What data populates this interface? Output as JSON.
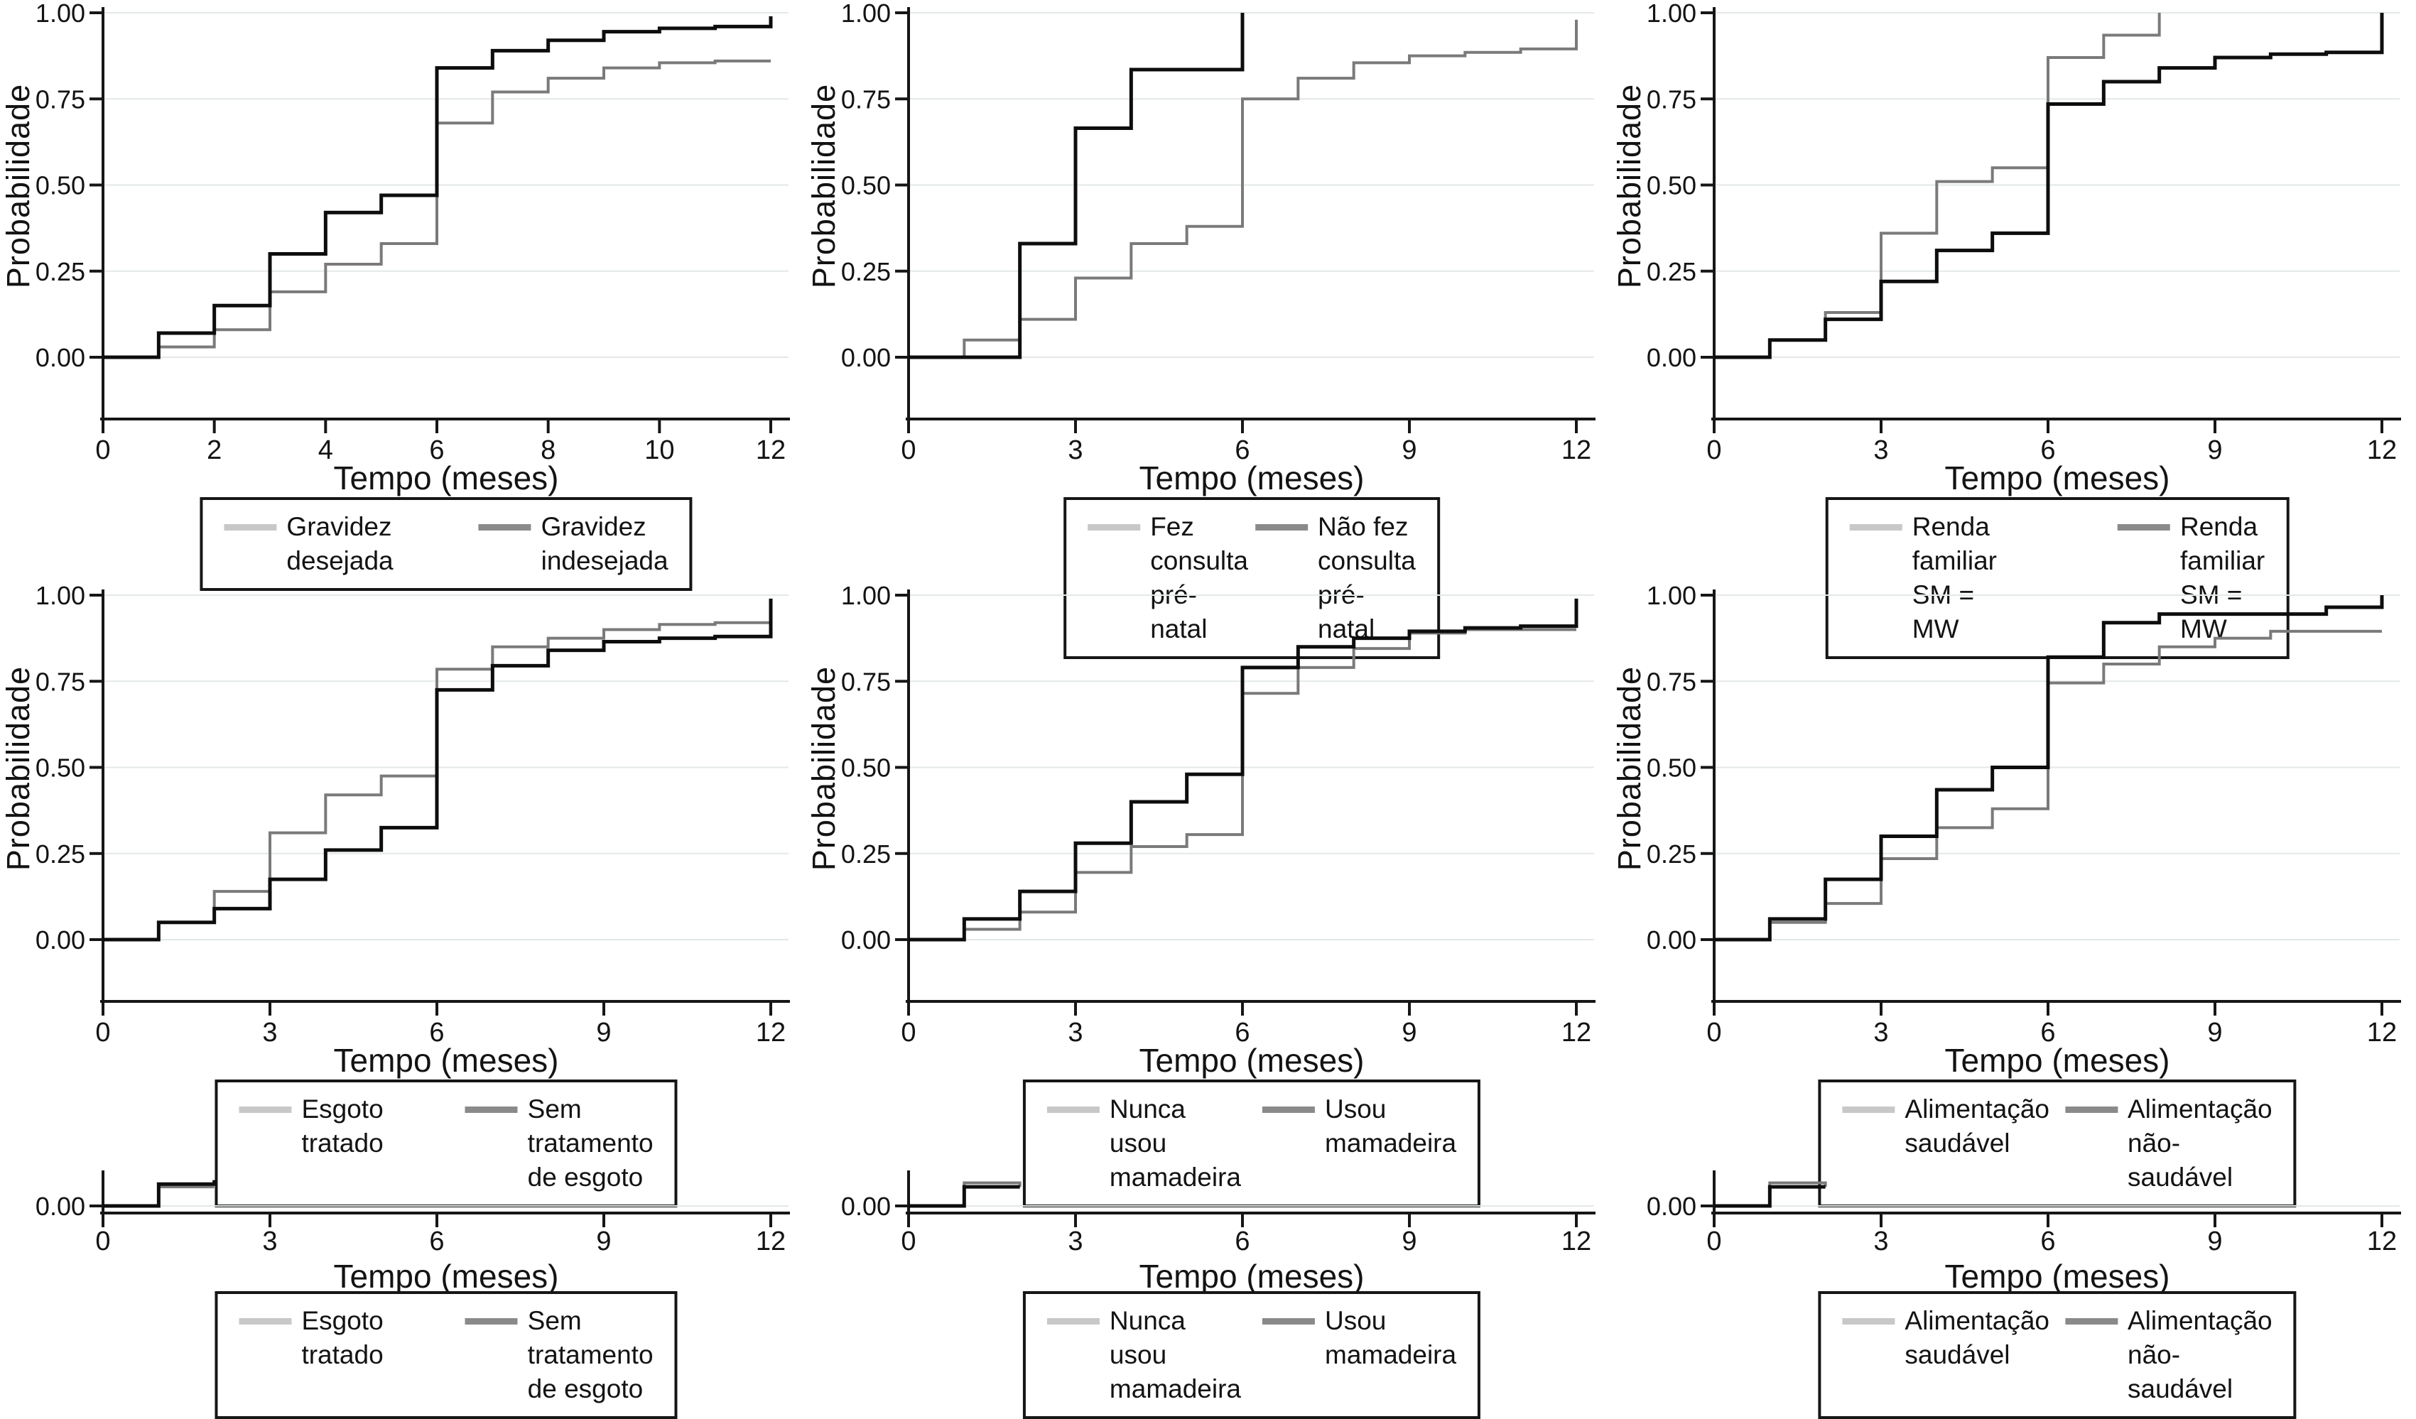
{
  "palette": {
    "curve_light": "#7a7a7a",
    "curve_dark": "#0d0d0d",
    "swatch_light": "#c8c8c8",
    "swatch_dark": "#8a8a8a",
    "gridline": "#e3e9e5",
    "axis": "#161616",
    "text": "#131313"
  },
  "chart_data": [
    {
      "type": "line",
      "subtype": "step-kaplan-meier",
      "panel": "full",
      "title": "",
      "xlabel": "Tempo (meses)",
      "ylabel": "Probabilidade",
      "xmax": 12,
      "ylim": [
        0,
        1
      ],
      "grid": true,
      "legend_position": "bottom",
      "xticks": [
        0,
        2,
        4,
        6,
        8,
        10,
        12
      ],
      "yticks": [
        {
          "v": 0,
          "label": "0.00"
        },
        {
          "v": 0.25,
          "label": "0.25"
        },
        {
          "v": 0.5,
          "label": "0.50"
        },
        {
          "v": 0.75,
          "label": "0.75"
        },
        {
          "v": 1,
          "label": "1.00"
        }
      ],
      "series": [
        {
          "name": "Gravidez desejada",
          "role": "light",
          "end": 12,
          "points": [
            [
              1,
              0.03
            ],
            [
              2,
              0.08
            ],
            [
              3,
              0.19
            ],
            [
              4,
              0.27
            ],
            [
              5,
              0.33
            ],
            [
              6,
              0.68
            ],
            [
              7,
              0.77
            ],
            [
              8,
              0.81
            ],
            [
              9,
              0.84
            ],
            [
              10,
              0.855
            ],
            [
              11,
              0.86
            ]
          ]
        },
        {
          "name": "Gravidez indesejada",
          "role": "dark",
          "end": 12,
          "points": [
            [
              1,
              0.07
            ],
            [
              2,
              0.15
            ],
            [
              3,
              0.3
            ],
            [
              4,
              0.42
            ],
            [
              5,
              0.47
            ],
            [
              6,
              0.84
            ],
            [
              7,
              0.89
            ],
            [
              8,
              0.92
            ],
            [
              9,
              0.945
            ],
            [
              10,
              0.955
            ],
            [
              11,
              0.96
            ],
            [
              12,
              0.99
            ]
          ]
        }
      ],
      "legend": [
        {
          "label": "Gravidez desejada",
          "swatch": "light"
        },
        {
          "label": "Gravidez indesejada",
          "swatch": "dark"
        }
      ]
    },
    {
      "type": "line",
      "subtype": "step-kaplan-meier",
      "panel": "full",
      "title": "",
      "xlabel": "Tempo (meses)",
      "ylabel": "Probabilidade",
      "xmax": 12,
      "ylim": [
        0,
        1
      ],
      "grid": true,
      "legend_position": "bottom",
      "xticks": [
        0,
        3,
        6,
        9,
        12
      ],
      "yticks": [
        {
          "v": 0,
          "label": "0.00"
        },
        {
          "v": 0.25,
          "label": "0.25"
        },
        {
          "v": 0.5,
          "label": "0.50"
        },
        {
          "v": 0.75,
          "label": "0.75"
        },
        {
          "v": 1,
          "label": "1.00"
        }
      ],
      "series": [
        {
          "name": "Fez consulta pré-natal",
          "role": "light",
          "end": 12,
          "points": [
            [
              1,
              0.05
            ],
            [
              2,
              0.11
            ],
            [
              3,
              0.23
            ],
            [
              4,
              0.33
            ],
            [
              5,
              0.38
            ],
            [
              6,
              0.75
            ],
            [
              7,
              0.81
            ],
            [
              8,
              0.855
            ],
            [
              9,
              0.875
            ],
            [
              10,
              0.885
            ],
            [
              11,
              0.895
            ],
            [
              12,
              0.98
            ]
          ]
        },
        {
          "name": "Não fez consulta pré-natal",
          "role": "dark",
          "end": 6,
          "points": [
            [
              2,
              0.33
            ],
            [
              3,
              0.665
            ],
            [
              4,
              0.835
            ],
            [
              6,
              1.0
            ]
          ]
        }
      ],
      "legend": [
        {
          "label": "Fez consulta pré-natal",
          "swatch": "light"
        },
        {
          "label": "Não fez consulta pré-natal",
          "lines": [
            "Não fez consulta",
            "pré-natal"
          ],
          "swatch": "dark"
        }
      ]
    },
    {
      "type": "line",
      "subtype": "step-kaplan-meier",
      "panel": "full",
      "title": "",
      "xlabel": "Tempo (meses)",
      "ylabel": "Probabilidade",
      "xmax": 12,
      "ylim": [
        0,
        1
      ],
      "grid": true,
      "legend_position": "bottom",
      "xticks": [
        0,
        3,
        6,
        9,
        12
      ],
      "yticks": [
        {
          "v": 0,
          "label": "0.00"
        },
        {
          "v": 0.25,
          "label": "0.25"
        },
        {
          "v": 0.5,
          "label": "0.50"
        },
        {
          "v": 0.75,
          "label": "0.75"
        },
        {
          "v": 1,
          "label": "1.00"
        }
      ],
      "series": [
        {
          "name": "Renda familiar SM = MW",
          "role": "light",
          "end": 8,
          "points": [
            [
              1,
              0.05
            ],
            [
              2,
              0.13
            ],
            [
              3,
              0.36
            ],
            [
              4,
              0.51
            ],
            [
              5,
              0.55
            ],
            [
              6,
              0.87
            ],
            [
              7,
              0.935
            ],
            [
              8,
              1.0
            ]
          ]
        },
        {
          "name": "Renda familiar SM = MW",
          "role": "dark",
          "end": 12,
          "points": [
            [
              1,
              0.05
            ],
            [
              2,
              0.11
            ],
            [
              3,
              0.22
            ],
            [
              4,
              0.31
            ],
            [
              5,
              0.36
            ],
            [
              6,
              0.735
            ],
            [
              7,
              0.8
            ],
            [
              8,
              0.84
            ],
            [
              9,
              0.87
            ],
            [
              10,
              0.88
            ],
            [
              11,
              0.885
            ],
            [
              12,
              1.0
            ]
          ]
        }
      ],
      "legend": [
        {
          "label": "Renda familiar SM = MW",
          "lines": [
            "Renda familiar",
            "SM = MW"
          ],
          "swatch": "light"
        },
        {
          "label": "Renda familiar SM = MW",
          "lines": [
            "Renda familiar",
            "SM = MW"
          ],
          "swatch": "dark"
        }
      ]
    },
    {
      "type": "line",
      "subtype": "step-kaplan-meier",
      "panel": "full",
      "title": "",
      "xlabel": "Tempo (meses)",
      "ylabel": "Probabilidade",
      "xmax": 12,
      "ylim": [
        0,
        1
      ],
      "grid": true,
      "legend_position": "bottom",
      "xticks": [
        0,
        3,
        6,
        9,
        12
      ],
      "yticks": [
        {
          "v": 0,
          "label": "0.00"
        },
        {
          "v": 0.25,
          "label": "0.25"
        },
        {
          "v": 0.5,
          "label": "0.50"
        },
        {
          "v": 0.75,
          "label": "0.75"
        },
        {
          "v": 1,
          "label": "1.00"
        }
      ],
      "series": [
        {
          "name": "Esgoto tratado",
          "role": "light",
          "end": 12,
          "points": [
            [
              1,
              0.05
            ],
            [
              2,
              0.14
            ],
            [
              3,
              0.31
            ],
            [
              4,
              0.42
            ],
            [
              5,
              0.475
            ],
            [
              6,
              0.785
            ],
            [
              7,
              0.85
            ],
            [
              8,
              0.875
            ],
            [
              9,
              0.9
            ],
            [
              10,
              0.915
            ],
            [
              11,
              0.92
            ]
          ]
        },
        {
          "name": "Sem tratamento de esgoto",
          "role": "dark",
          "end": 12,
          "points": [
            [
              1,
              0.05
            ],
            [
              2,
              0.09
            ],
            [
              3,
              0.175
            ],
            [
              4,
              0.26
            ],
            [
              5,
              0.325
            ],
            [
              6,
              0.725
            ],
            [
              7,
              0.795
            ],
            [
              8,
              0.84
            ],
            [
              9,
              0.865
            ],
            [
              10,
              0.875
            ],
            [
              11,
              0.88
            ],
            [
              12,
              0.99
            ]
          ]
        }
      ],
      "legend": [
        {
          "label": "Esgoto tratado",
          "swatch": "light"
        },
        {
          "label": "Sem tratamento de esgoto",
          "swatch": "dark"
        }
      ]
    },
    {
      "type": "line",
      "subtype": "step-kaplan-meier",
      "panel": "full",
      "title": "",
      "xlabel": "Tempo (meses)",
      "ylabel": "Probabilidade",
      "xmax": 12,
      "ylim": [
        0,
        1
      ],
      "grid": true,
      "legend_position": "bottom",
      "xticks": [
        0,
        3,
        6,
        9,
        12
      ],
      "yticks": [
        {
          "v": 0,
          "label": "0.00"
        },
        {
          "v": 0.25,
          "label": "0.25"
        },
        {
          "v": 0.5,
          "label": "0.50"
        },
        {
          "v": 0.75,
          "label": "0.75"
        },
        {
          "v": 1,
          "label": "1.00"
        }
      ],
      "series": [
        {
          "name": "Nunca usou mamadeira",
          "role": "light",
          "end": 12,
          "points": [
            [
              1,
              0.03
            ],
            [
              2,
              0.08
            ],
            [
              3,
              0.195
            ],
            [
              4,
              0.27
            ],
            [
              5,
              0.305
            ],
            [
              6,
              0.715
            ],
            [
              7,
              0.79
            ],
            [
              8,
              0.845
            ],
            [
              9,
              0.89
            ],
            [
              10,
              0.9
            ]
          ]
        },
        {
          "name": "Usou mamadeira",
          "role": "dark",
          "end": 12,
          "points": [
            [
              1,
              0.06
            ],
            [
              2,
              0.14
            ],
            [
              3,
              0.28
            ],
            [
              4,
              0.4
            ],
            [
              5,
              0.48
            ],
            [
              6,
              0.79
            ],
            [
              7,
              0.85
            ],
            [
              8,
              0.875
            ],
            [
              9,
              0.895
            ],
            [
              10,
              0.905
            ],
            [
              11,
              0.91
            ],
            [
              12,
              0.99
            ]
          ]
        }
      ],
      "legend": [
        {
          "label": "Nunca usou mamadeira",
          "swatch": "light"
        },
        {
          "label": "Usou mamadeira",
          "swatch": "dark"
        }
      ]
    },
    {
      "type": "line",
      "subtype": "step-kaplan-meier",
      "panel": "full",
      "title": "",
      "xlabel": "Tempo (meses)",
      "ylabel": "Probabilidade",
      "xmax": 12,
      "ylim": [
        0,
        1
      ],
      "grid": true,
      "legend_position": "bottom",
      "xticks": [
        0,
        3,
        6,
        9,
        12
      ],
      "yticks": [
        {
          "v": 0,
          "label": "0.00"
        },
        {
          "v": 0.25,
          "label": "0.25"
        },
        {
          "v": 0.5,
          "label": "0.50"
        },
        {
          "v": 0.75,
          "label": "0.75"
        },
        {
          "v": 1,
          "label": "1.00"
        }
      ],
      "series": [
        {
          "name": "Alimentação saudável",
          "role": "light",
          "end": 12,
          "points": [
            [
              1,
              0.05
            ],
            [
              2,
              0.105
            ],
            [
              3,
              0.235
            ],
            [
              4,
              0.325
            ],
            [
              5,
              0.38
            ],
            [
              6,
              0.745
            ],
            [
              7,
              0.8
            ],
            [
              8,
              0.85
            ],
            [
              9,
              0.875
            ],
            [
              10,
              0.895
            ]
          ]
        },
        {
          "name": "Alimentação não-saudável",
          "role": "dark",
          "end": 12,
          "points": [
            [
              1,
              0.06
            ],
            [
              2,
              0.175
            ],
            [
              3,
              0.3
            ],
            [
              4,
              0.435
            ],
            [
              5,
              0.5
            ],
            [
              6,
              0.82
            ],
            [
              7,
              0.92
            ],
            [
              8,
              0.945
            ],
            [
              11,
              0.965
            ],
            [
              12,
              1.0
            ]
          ]
        }
      ],
      "legend": [
        {
          "label": "Alimentação saudável",
          "swatch": "light"
        },
        {
          "label": "Alimentação não-saudável",
          "swatch": "dark"
        }
      ]
    },
    {
      "type": "line",
      "subtype": "step-kaplan-meier",
      "panel": "truncated",
      "title": "",
      "xlabel": "Tempo (meses)",
      "ylabel": "",
      "xmax": 12,
      "ylim": [
        0,
        0.09
      ],
      "grid": true,
      "legend_position": "bottom",
      "xticks": [
        0,
        3,
        6,
        9,
        12
      ],
      "yticks": [
        {
          "v": 0,
          "label": "0.00"
        }
      ],
      "series": [
        {
          "name": "Esgoto tratado",
          "role": "light",
          "end": 2,
          "points": [
            [
              1,
              0.048
            ]
          ]
        },
        {
          "name": "Sem tratamento de esgoto",
          "role": "dark",
          "end": 2,
          "points": [
            [
              1,
              0.055
            ],
            [
              2,
              0.065
            ]
          ]
        }
      ],
      "legend": [
        {
          "label": "Esgoto tratado",
          "swatch": "light"
        },
        {
          "label": "Sem tratamento de esgoto",
          "swatch": "dark"
        }
      ]
    },
    {
      "type": "line",
      "subtype": "step-kaplan-meier",
      "panel": "truncated",
      "title": "",
      "xlabel": "Tempo (meses)",
      "ylabel": "",
      "xmax": 12,
      "ylim": [
        0,
        0.09
      ],
      "grid": true,
      "legend_position": "bottom",
      "xticks": [
        0,
        3,
        6,
        9,
        12
      ],
      "yticks": [
        {
          "v": 0,
          "label": "0.00"
        }
      ],
      "series": [
        {
          "name": "Usou mamadeira",
          "role": "dark",
          "end": 2,
          "points": [
            [
              1,
              0.048
            ]
          ]
        },
        {
          "name": "Nunca usou mamadeira",
          "role": "light",
          "end": 2,
          "points": [
            [
              1,
              0.058
            ],
            [
              2,
              0.048
            ]
          ]
        }
      ],
      "legend": [
        {
          "label": "Nunca usou mamadeira",
          "swatch": "light"
        },
        {
          "label": "Usou mamadeira",
          "swatch": "dark"
        }
      ]
    },
    {
      "type": "line",
      "subtype": "step-kaplan-meier",
      "panel": "truncated",
      "title": "",
      "xlabel": "Tempo (meses)",
      "ylabel": "",
      "xmax": 12,
      "ylim": [
        0,
        0.09
      ],
      "grid": true,
      "legend_position": "bottom",
      "xticks": [
        0,
        3,
        6,
        9,
        12
      ],
      "yticks": [
        {
          "v": 0,
          "label": "0.00"
        }
      ],
      "series": [
        {
          "name": "Alimentação não-saudável",
          "role": "dark",
          "end": 2,
          "points": [
            [
              1,
              0.048
            ]
          ]
        },
        {
          "name": "Alimentação saudável",
          "role": "light",
          "end": 2,
          "points": [
            [
              1,
              0.058
            ],
            [
              2,
              0.048
            ]
          ]
        }
      ],
      "legend": [
        {
          "label": "Alimentação saudável",
          "swatch": "light"
        },
        {
          "label": "Alimentação não-saudável",
          "swatch": "dark"
        }
      ]
    }
  ]
}
